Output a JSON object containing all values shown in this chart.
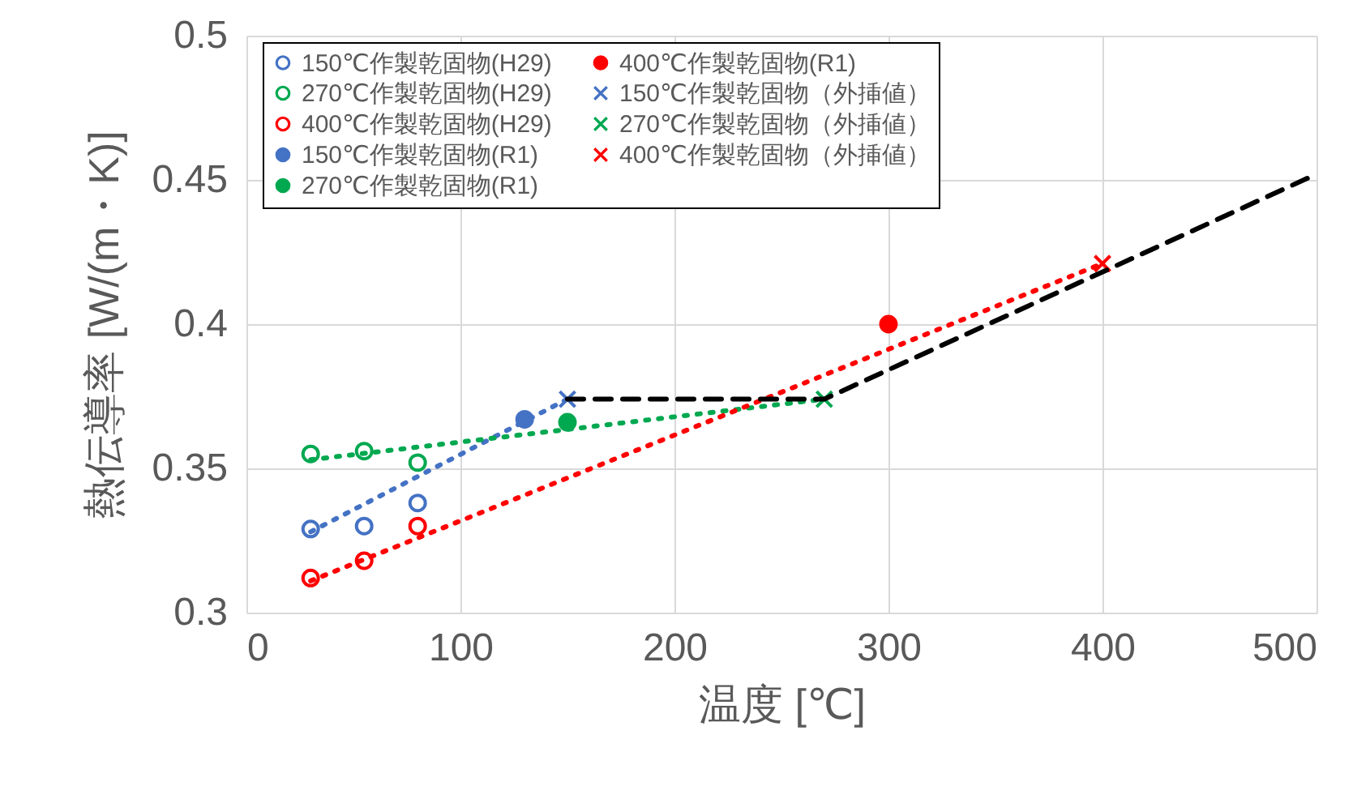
{
  "chart_data": {
    "type": "scatter",
    "xlabel": "温度 [℃]",
    "ylabel": "熱伝導率 [W/(m・K)]",
    "xlim": [
      0,
      500
    ],
    "xticks": [
      0,
      100,
      200,
      300,
      400,
      500
    ],
    "ylim": [
      0.3,
      0.5
    ],
    "yticks": [
      0.3,
      0.35,
      0.4,
      0.45,
      0.5
    ],
    "grid": true,
    "legend": "top left",
    "series": [
      {
        "name": "150℃作製乾固物(H29)",
        "color": "#4472c4",
        "marker": "circle-open",
        "x": [
          30,
          55,
          80
        ],
        "values": [
          0.329,
          0.33,
          0.338
        ]
      },
      {
        "name": "270℃作製乾固物(H29)",
        "color": "#00a850",
        "marker": "circle-open",
        "x": [
          30,
          55,
          80
        ],
        "values": [
          0.355,
          0.356,
          0.352
        ]
      },
      {
        "name": "400℃作製乾固物(H29)",
        "color": "#ff0000",
        "marker": "circle-open",
        "x": [
          30,
          55,
          80
        ],
        "values": [
          0.312,
          0.318,
          0.33
        ]
      },
      {
        "name": "150℃作製乾固物(R1)",
        "color": "#4472c4",
        "marker": "circle",
        "x": [
          130
        ],
        "values": [
          0.367
        ]
      },
      {
        "name": "270℃作製乾固物(R1)",
        "color": "#00a850",
        "marker": "circle",
        "x": [
          150
        ],
        "values": [
          0.366
        ]
      },
      {
        "name": "400℃作製乾固物(R1)",
        "color": "#ff0000",
        "marker": "circle",
        "x": [
          300
        ],
        "values": [
          0.4
        ]
      },
      {
        "name": "150℃作製乾固物（外挿値）",
        "color": "#4472c4",
        "marker": "cross",
        "x": [
          150
        ],
        "values": [
          0.374
        ]
      },
      {
        "name": "270℃作製乾固物（外挿値）",
        "color": "#00a850",
        "marker": "cross",
        "x": [
          270
        ],
        "values": [
          0.374
        ]
      },
      {
        "name": "400℃作製乾固物（外挿値）",
        "color": "#ff0000",
        "marker": "cross",
        "x": [
          400
        ],
        "values": [
          0.421
        ]
      },
      {
        "type": "line",
        "color": "#4472c4",
        "line_style": "dotted",
        "x": [
          30,
          150
        ],
        "values": [
          0.328,
          0.374
        ]
      },
      {
        "type": "line",
        "color": "#00a850",
        "line_style": "dotted",
        "x": [
          30,
          270
        ],
        "values": [
          0.353,
          0.374
        ]
      },
      {
        "type": "line",
        "color": "#ff0000",
        "line_style": "dotted",
        "x": [
          30,
          400
        ],
        "values": [
          0.311,
          0.421
        ]
      },
      {
        "type": "line",
        "color": "#000000",
        "line_style": "dashed",
        "x": [
          150,
          270,
          500
        ],
        "values": [
          0.374,
          0.374,
          0.452
        ]
      }
    ]
  }
}
